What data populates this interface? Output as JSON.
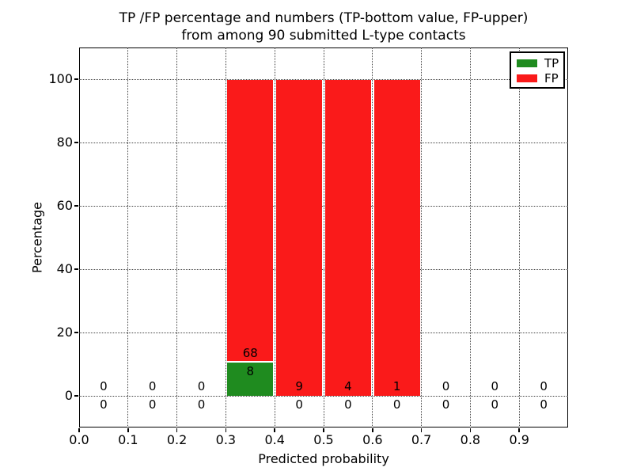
{
  "title": {
    "line1": "TP /FP percentage and numbers (TP-bottom value, FP-upper)",
    "line2": "from among 90 submitted L-type contacts"
  },
  "axes": {
    "x_label": "Predicted probability",
    "y_label": "Percentage",
    "x_tick_values": [
      0.0,
      0.1,
      0.2,
      0.3,
      0.4,
      0.5,
      0.6,
      0.7,
      0.8,
      0.9
    ],
    "x_tick_labels": [
      "0.0",
      "0.1",
      "0.2",
      "0.3",
      "0.4",
      "0.5",
      "0.6",
      "0.7",
      "0.8",
      "0.9"
    ],
    "y_tick_values": [
      0,
      20,
      40,
      60,
      80,
      100
    ],
    "y_tick_labels": [
      "0",
      "20",
      "40",
      "60",
      "80",
      "100"
    ]
  },
  "legend": {
    "items": [
      {
        "label": "TP",
        "color": "#1f8b1f"
      },
      {
        "label": "FP",
        "color": "#fa1a1a"
      }
    ]
  },
  "chart_data": {
    "type": "bar",
    "stacked": true,
    "title": "TP /FP percentage and numbers (TP-bottom value, FP-upper)\nfrom among 90 submitted L-type contacts",
    "xlabel": "Predicted probability",
    "ylabel": "Percentage",
    "xlim": [
      0.0,
      1.0
    ],
    "ylim": [
      -10,
      110
    ],
    "grid": "dotted",
    "legend_position": "upper right",
    "total_submitted": 90,
    "bin_edges": [
      0.0,
      0.1,
      0.2,
      0.3,
      0.4,
      0.5,
      0.6,
      0.7,
      0.8,
      0.9,
      1.0
    ],
    "bin_centers": [
      0.05,
      0.15,
      0.25,
      0.35,
      0.45,
      0.55,
      0.65,
      0.75,
      0.85,
      0.95
    ],
    "series": [
      {
        "name": "TP",
        "color": "#1f8b1f",
        "counts": [
          0,
          0,
          0,
          8,
          0,
          0,
          0,
          0,
          0,
          0
        ],
        "percent": [
          0,
          0,
          0,
          10.5,
          0,
          0,
          0,
          0,
          0,
          0
        ]
      },
      {
        "name": "FP",
        "color": "#fa1a1a",
        "counts": [
          0,
          0,
          0,
          68,
          9,
          4,
          1,
          0,
          0,
          0
        ],
        "percent": [
          0,
          0,
          0,
          89.5,
          100,
          100,
          100,
          0,
          0,
          0
        ]
      }
    ]
  }
}
